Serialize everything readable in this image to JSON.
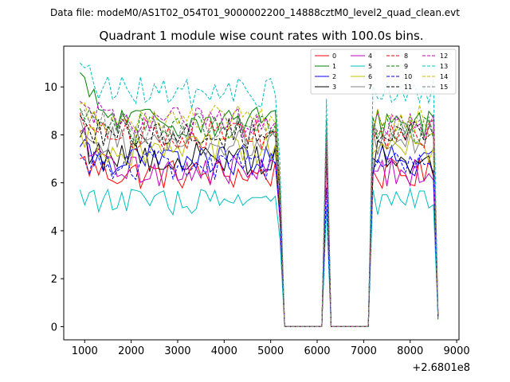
{
  "chart_data": {
    "type": "line",
    "suptitle": "Data file: modeM0/AS1T02_054T01_9000002200_14888cztM0_level2_quad_clean.evt",
    "title": "Quadrant 1 module wise count rates with 100.0s bins.",
    "xlabel": "",
    "ylabel": "",
    "x_offset_label": "+2.6801e8",
    "xlim": [
      550,
      9050
    ],
    "ylim": [
      -0.55,
      11.7
    ],
    "x_ticks": [
      1000,
      2000,
      3000,
      4000,
      5000,
      6000,
      7000,
      8000,
      9000
    ],
    "x_tick_labels": [
      "1000",
      "2000",
      "3000",
      "4000",
      "5000",
      "6000",
      "7000",
      "8000",
      "9000"
    ],
    "y_ticks": [
      0,
      2,
      4,
      6,
      8,
      10
    ],
    "y_tick_labels": [
      "0",
      "2",
      "4",
      "6",
      "8",
      "10"
    ],
    "legend_position": "top-right",
    "bin_seconds": 100,
    "x_start": 900,
    "gap1": [
      5200,
      6000
    ],
    "peak_x": 6200,
    "gap2": [
      6400,
      7100
    ],
    "x_end": 8600,
    "series": [
      {
        "name": "0",
        "color": "#ff0000",
        "dash": "solid",
        "base": 6.35,
        "noise": 0.3,
        "start": 7.0,
        "peak": 7.0,
        "end": 0.5
      },
      {
        "name": "1",
        "color": "#008000",
        "dash": "solid",
        "base": 8.55,
        "noise": 0.3,
        "start": 10.6,
        "peak": 8.2,
        "end": 0.3
      },
      {
        "name": "2",
        "color": "#0000ff",
        "dash": "solid",
        "base": 6.95,
        "noise": 0.3,
        "start": 7.5,
        "peak": 7.8,
        "end": 0.4
      },
      {
        "name": "3",
        "color": "#000000",
        "dash": "solid",
        "base": 7.05,
        "noise": 0.35,
        "start": 7.9,
        "peak": 7.5,
        "end": 0.5
      },
      {
        "name": "4",
        "color": "#bf00bf",
        "dash": "solid",
        "base": 6.5,
        "noise": 0.3,
        "start": 8.1,
        "peak": 7.2,
        "end": 0.6
      },
      {
        "name": "5",
        "color": "#00bfbf",
        "dash": "solid",
        "base": 5.2,
        "noise": 0.25,
        "start": 5.7,
        "peak": 5.0,
        "end": 0.4
      },
      {
        "name": "6",
        "color": "#bfbf00",
        "dash": "solid",
        "base": 7.35,
        "noise": 0.3,
        "start": 8.2,
        "peak": 8.7,
        "end": 0.5
      },
      {
        "name": "7",
        "color": "#808080",
        "dash": "solid",
        "base": 7.7,
        "noise": 0.3,
        "start": 8.7,
        "peak": 8.3,
        "end": 0.5
      },
      {
        "name": "8",
        "color": "#ff0000",
        "dash": "dashed",
        "base": 8.0,
        "noise": 0.3,
        "start": 8.9,
        "peak": 8.0,
        "end": 0.5
      },
      {
        "name": "9",
        "color": "#008000",
        "dash": "dashed",
        "base": 8.3,
        "noise": 0.3,
        "start": 9.1,
        "peak": 8.2,
        "end": 0.5
      },
      {
        "name": "10",
        "color": "#0000ff",
        "dash": "dashed",
        "base": 6.7,
        "noise": 0.3,
        "start": 7.2,
        "peak": 5.8,
        "end": 0.4
      },
      {
        "name": "11",
        "color": "#000000",
        "dash": "dashed",
        "base": 8.05,
        "noise": 0.3,
        "start": 8.8,
        "peak": 8.4,
        "end": 0.5
      },
      {
        "name": "12",
        "color": "#bf00bf",
        "dash": "dashed",
        "base": 8.55,
        "noise": 0.3,
        "start": 9.4,
        "peak": 8.6,
        "end": 0.6
      },
      {
        "name": "13",
        "color": "#00bfbf",
        "dash": "dashed",
        "base": 9.75,
        "noise": 0.3,
        "start": 11.0,
        "peak": 9.5,
        "end": 0.5
      },
      {
        "name": "14",
        "color": "#bfbf00",
        "dash": "dashed",
        "base": 8.6,
        "noise": 0.3,
        "start": 9.3,
        "peak": 8.4,
        "end": 0.5
      },
      {
        "name": "15",
        "color": "#808080",
        "dash": "dashed",
        "base": 8.25,
        "noise": 0.3,
        "start": 8.9,
        "peak": 8.3,
        "end": 0.5
      }
    ]
  }
}
